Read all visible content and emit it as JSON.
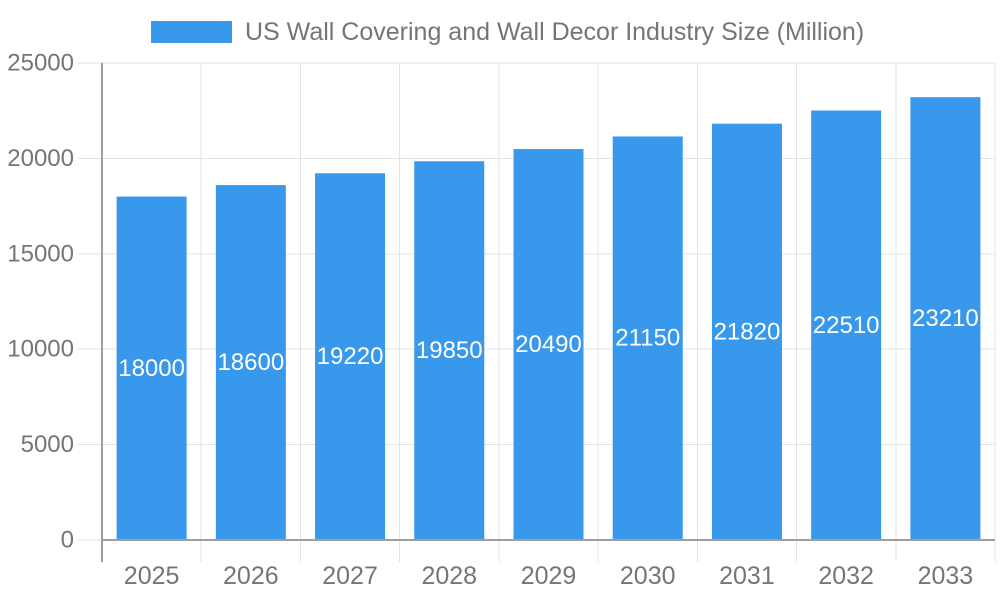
{
  "legend": {
    "label": "US Wall Covering and Wall Decor Industry Size (Million)"
  },
  "chart_data": {
    "type": "bar",
    "title": "US Wall Covering and Wall Decor Industry Size (Million)",
    "categories": [
      "2025",
      "2026",
      "2027",
      "2028",
      "2029",
      "2030",
      "2031",
      "2032",
      "2033"
    ],
    "values": [
      18000,
      18600,
      19220,
      19850,
      20490,
      21150,
      21820,
      22510,
      23210
    ],
    "series": [
      {
        "name": "US Wall Covering and Wall Decor Industry Size (Million)",
        "values": [
          18000,
          18600,
          19220,
          19850,
          20490,
          21150,
          21820,
          22510,
          23210
        ]
      }
    ],
    "xlabel": "",
    "ylabel": "",
    "ylim": [
      0,
      25000
    ],
    "yticks": [
      0,
      5000,
      10000,
      15000,
      20000,
      25000
    ],
    "grid": true,
    "legend_position": "top",
    "bar_label_position": "inside-center",
    "bar_color": "#3898EC",
    "bar_label_color": "#FFFFFF",
    "axis_color": "#9E9E9E",
    "grid_color": "#E3E3E3",
    "text_color": "#757575",
    "background_color": "#FFFFFF"
  }
}
